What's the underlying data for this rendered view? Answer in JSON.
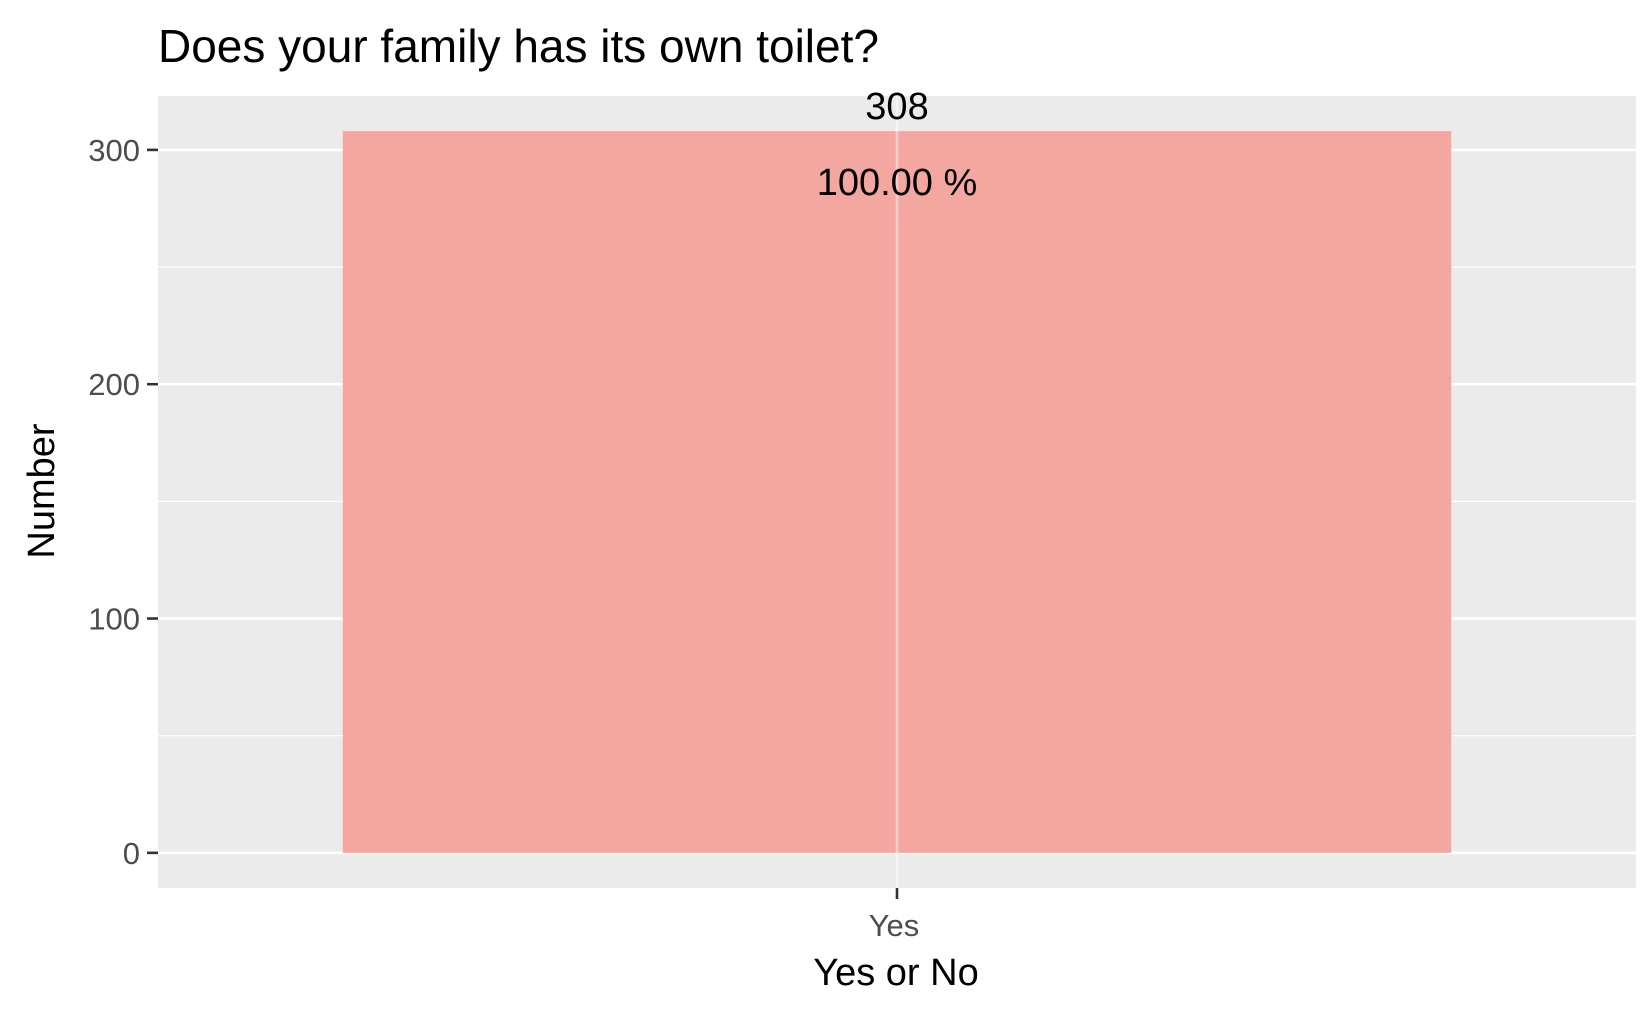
{
  "chart_data": {
    "type": "bar",
    "title": "Does your family has its own toilet?",
    "xlabel": "Yes or No",
    "ylabel": "Number",
    "categories": [
      "Yes"
    ],
    "values": [
      308
    ],
    "value_labels": [
      "308"
    ],
    "percent_labels": [
      "100.00 %"
    ],
    "ylim": [
      -15,
      323
    ],
    "yticks": [
      0,
      100,
      200,
      300
    ],
    "ytick_labels": [
      "0",
      "100",
      "200",
      "300"
    ],
    "grid": true,
    "legend": "none",
    "colors": {
      "bar": "#f4a6a1",
      "panel": "#ebebeb",
      "grid": "#ffffff"
    }
  }
}
